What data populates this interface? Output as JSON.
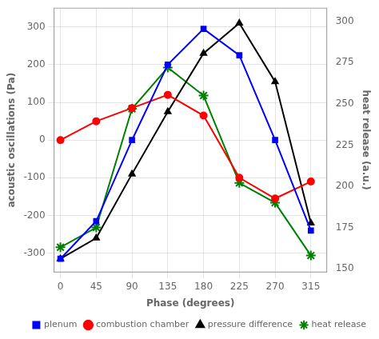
{
  "chart_data": {
    "type": "line",
    "xlabel": "Phase (degrees)",
    "ylabel": "acoustic oscillations (Pa)",
    "y2label": "heat release (a.u.)",
    "x": [
      0,
      45,
      90,
      135,
      180,
      225,
      270,
      315
    ],
    "series": [
      {
        "name": "plenum",
        "color": "#0000FF",
        "marker": "square",
        "values": [
          -315,
          -215,
          0,
          200,
          295,
          225,
          0,
          -240
        ]
      },
      {
        "name": "combustion chamber",
        "color": "#FF0000",
        "marker": "circle",
        "values": [
          0,
          50,
          85,
          120,
          65,
          -100,
          -155,
          -110
        ]
      },
      {
        "name": "pressure difference",
        "color": "#000000",
        "marker": "triangle",
        "values": [
          -315,
          -260,
          -90,
          75,
          230,
          310,
          155,
          -220
        ]
      },
      {
        "name": "heat release",
        "color": "#008000",
        "marker": "star",
        "axis": "y2",
        "values": [
          163,
          175,
          247,
          272,
          255,
          202,
          190,
          158
        ]
      }
    ],
    "xlim": [
      -8,
      335
    ],
    "xticks": [
      0,
      45,
      90,
      135,
      180,
      225,
      270,
      315
    ],
    "ylim": [
      -350,
      350
    ],
    "yticks": [
      -300,
      -200,
      -100,
      0,
      100,
      200,
      300
    ],
    "y2lim": [
      148,
      308
    ],
    "y2ticks": [
      150,
      175,
      200,
      225,
      250,
      275,
      300
    ],
    "grid": true,
    "legend": "lower right"
  }
}
